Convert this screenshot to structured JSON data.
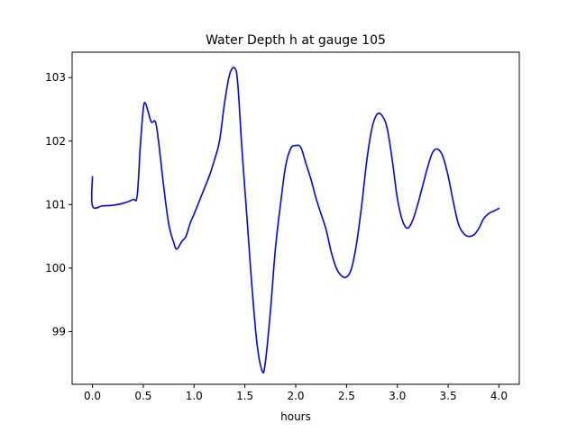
{
  "chart_data": {
    "type": "line",
    "title": "Water Depth h at gauge 105",
    "xlabel": "hours",
    "ylabel": "",
    "xlim": [
      -0.2,
      4.2
    ],
    "ylim": [
      98.17,
      103.4
    ],
    "xticks": [
      0.0,
      0.5,
      1.0,
      1.5,
      2.0,
      2.5,
      3.0,
      3.5,
      4.0
    ],
    "xtick_labels": [
      "0.0",
      "0.5",
      "1.0",
      "1.5",
      "2.0",
      "2.5",
      "3.0",
      "3.5",
      "4.0"
    ],
    "yticks": [
      99,
      100,
      101,
      102,
      103
    ],
    "ytick_labels": [
      "99",
      "100",
      "101",
      "102",
      "103"
    ],
    "grid": false,
    "series": [
      {
        "color": "#0000ff",
        "points": [
          [
            0.0,
            101.44
          ],
          [
            0.0,
            100.98
          ],
          [
            0.1,
            100.98
          ],
          [
            0.2,
            100.99
          ],
          [
            0.3,
            101.02
          ],
          [
            0.4,
            101.08
          ],
          [
            0.44,
            101.14
          ],
          [
            0.47,
            101.9
          ],
          [
            0.5,
            102.5
          ],
          [
            0.52,
            102.6
          ],
          [
            0.55,
            102.45
          ],
          [
            0.58,
            102.3
          ],
          [
            0.62,
            102.3
          ],
          [
            0.65,
            102.0
          ],
          [
            0.7,
            101.3
          ],
          [
            0.75,
            100.7
          ],
          [
            0.8,
            100.4
          ],
          [
            0.83,
            100.3
          ],
          [
            0.88,
            100.42
          ],
          [
            0.92,
            100.5
          ],
          [
            0.96,
            100.7
          ],
          [
            1.0,
            100.85
          ],
          [
            1.05,
            101.05
          ],
          [
            1.1,
            101.25
          ],
          [
            1.15,
            101.45
          ],
          [
            1.2,
            101.7
          ],
          [
            1.25,
            102.0
          ],
          [
            1.3,
            102.6
          ],
          [
            1.35,
            103.05
          ],
          [
            1.4,
            103.15
          ],
          [
            1.43,
            102.9
          ],
          [
            1.47,
            101.9
          ],
          [
            1.52,
            100.8
          ],
          [
            1.57,
            99.7
          ],
          [
            1.62,
            98.8
          ],
          [
            1.67,
            98.38
          ],
          [
            1.7,
            98.5
          ],
          [
            1.75,
            99.3
          ],
          [
            1.8,
            100.3
          ],
          [
            1.85,
            101.0
          ],
          [
            1.9,
            101.6
          ],
          [
            1.95,
            101.88
          ],
          [
            2.0,
            101.93
          ],
          [
            2.05,
            101.9
          ],
          [
            2.1,
            101.65
          ],
          [
            2.15,
            101.4
          ],
          [
            2.2,
            101.1
          ],
          [
            2.25,
            100.85
          ],
          [
            2.3,
            100.6
          ],
          [
            2.35,
            100.25
          ],
          [
            2.4,
            100.0
          ],
          [
            2.45,
            99.88
          ],
          [
            2.5,
            99.86
          ],
          [
            2.55,
            100.0
          ],
          [
            2.6,
            100.4
          ],
          [
            2.65,
            101.0
          ],
          [
            2.7,
            101.7
          ],
          [
            2.75,
            102.2
          ],
          [
            2.8,
            102.42
          ],
          [
            2.85,
            102.4
          ],
          [
            2.9,
            102.2
          ],
          [
            2.95,
            101.7
          ],
          [
            3.0,
            101.1
          ],
          [
            3.05,
            100.75
          ],
          [
            3.1,
            100.63
          ],
          [
            3.15,
            100.75
          ],
          [
            3.2,
            101.0
          ],
          [
            3.25,
            101.3
          ],
          [
            3.3,
            101.6
          ],
          [
            3.35,
            101.83
          ],
          [
            3.4,
            101.87
          ],
          [
            3.45,
            101.75
          ],
          [
            3.5,
            101.45
          ],
          [
            3.55,
            101.05
          ],
          [
            3.6,
            100.7
          ],
          [
            3.65,
            100.55
          ],
          [
            3.7,
            100.5
          ],
          [
            3.75,
            100.52
          ],
          [
            3.8,
            100.62
          ],
          [
            3.85,
            100.78
          ],
          [
            3.9,
            100.86
          ],
          [
            3.95,
            100.9
          ],
          [
            4.0,
            100.94
          ]
        ]
      }
    ]
  }
}
